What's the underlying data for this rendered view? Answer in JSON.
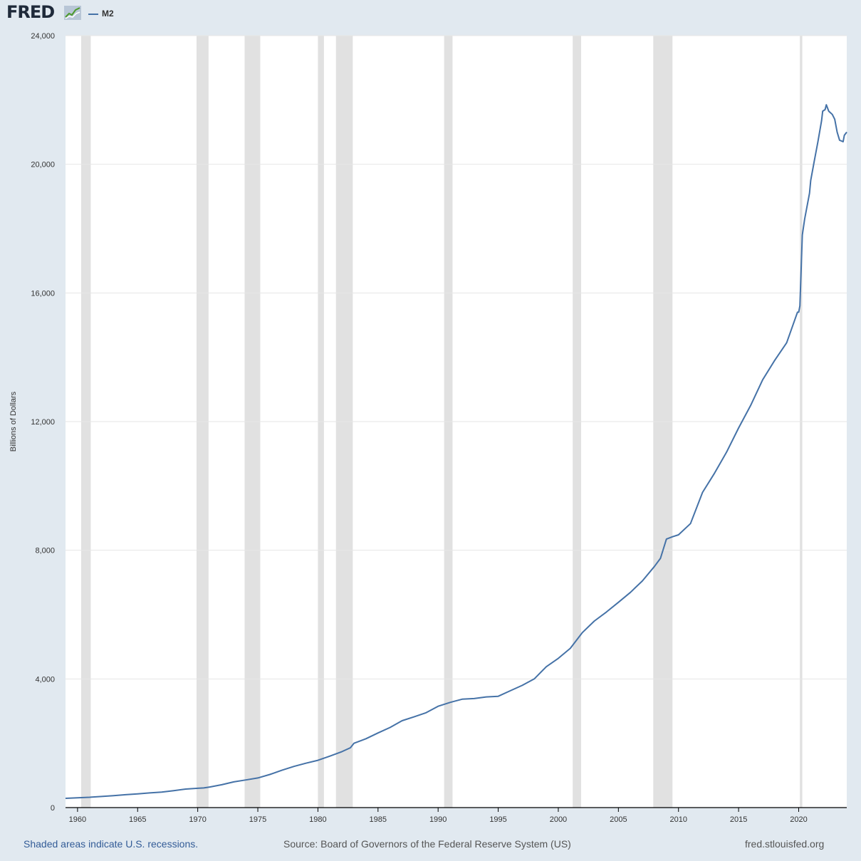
{
  "header": {
    "logo_text": "FRED",
    "logo_mark_icon": "chart-line-icon",
    "legend_label": "M2"
  },
  "footer": {
    "recession_note": "Shaded areas indicate U.S. recessions.",
    "source": "Source: Board of Governors of the Federal Reserve System (US)",
    "site": "fred.stlouisfed.org"
  },
  "colors": {
    "series": "#4572a7",
    "recession": "#e1e1e1",
    "background": "#e1e9f0"
  },
  "chart_data": {
    "type": "line",
    "title": "",
    "xlabel": "",
    "ylabel": "Billions of Dollars",
    "xlim": [
      1959.0,
      2024.0
    ],
    "ylim": [
      0,
      24000
    ],
    "yticks": [
      0,
      4000,
      8000,
      12000,
      16000,
      20000,
      24000
    ],
    "ytick_labels": [
      "0",
      "4,000",
      "8,000",
      "12,000",
      "16,000",
      "20,000",
      "24,000"
    ],
    "xticks": [
      1960,
      1965,
      1970,
      1975,
      1980,
      1985,
      1990,
      1995,
      2000,
      2005,
      2010,
      2015,
      2020
    ],
    "xtick_labels": [
      "1960",
      "1965",
      "1970",
      "1975",
      "1980",
      "1985",
      "1990",
      "1995",
      "2000",
      "2005",
      "2010",
      "2015",
      "2020"
    ],
    "grid": true,
    "legend": "top-left",
    "recessions": [
      [
        1960.3,
        1961.1
      ],
      [
        1969.9,
        1970.9
      ],
      [
        1973.9,
        1975.2
      ],
      [
        1980.0,
        1980.5
      ],
      [
        1981.5,
        1982.9
      ],
      [
        1990.5,
        1991.2
      ],
      [
        2001.2,
        2001.9
      ],
      [
        2007.9,
        2009.5
      ],
      [
        2020.1,
        2020.3
      ]
    ],
    "series": [
      {
        "name": "M2",
        "points": [
          [
            1959.0,
            287
          ],
          [
            1960.0,
            305
          ],
          [
            1961.0,
            320
          ],
          [
            1962.0,
            345
          ],
          [
            1963.0,
            370
          ],
          [
            1964.0,
            400
          ],
          [
            1965.0,
            425
          ],
          [
            1966.0,
            455
          ],
          [
            1967.0,
            480
          ],
          [
            1968.0,
            525
          ],
          [
            1969.0,
            575
          ],
          [
            1970.0,
            600
          ],
          [
            1970.5,
            610
          ],
          [
            1971.0,
            640
          ],
          [
            1972.0,
            710
          ],
          [
            1973.0,
            800
          ],
          [
            1974.0,
            860
          ],
          [
            1975.0,
            920
          ],
          [
            1976.0,
            1030
          ],
          [
            1977.0,
            1160
          ],
          [
            1978.0,
            1280
          ],
          [
            1979.0,
            1380
          ],
          [
            1980.0,
            1470
          ],
          [
            1981.0,
            1600
          ],
          [
            1982.0,
            1740
          ],
          [
            1982.7,
            1860
          ],
          [
            1983.0,
            2000
          ],
          [
            1984.0,
            2140
          ],
          [
            1985.0,
            2320
          ],
          [
            1986.0,
            2490
          ],
          [
            1987.0,
            2700
          ],
          [
            1988.0,
            2820
          ],
          [
            1989.0,
            2950
          ],
          [
            1990.0,
            3150
          ],
          [
            1991.0,
            3270
          ],
          [
            1992.0,
            3370
          ],
          [
            1993.0,
            3390
          ],
          [
            1994.0,
            3440
          ],
          [
            1995.0,
            3460
          ],
          [
            1996.0,
            3630
          ],
          [
            1997.0,
            3800
          ],
          [
            1998.0,
            4000
          ],
          [
            1999.0,
            4380
          ],
          [
            2000.0,
            4640
          ],
          [
            2001.0,
            4950
          ],
          [
            2002.0,
            5440
          ],
          [
            2003.0,
            5800
          ],
          [
            2004.0,
            6080
          ],
          [
            2005.0,
            6380
          ],
          [
            2006.0,
            6690
          ],
          [
            2007.0,
            7050
          ],
          [
            2008.0,
            7500
          ],
          [
            2008.5,
            7750
          ],
          [
            2009.0,
            8350
          ],
          [
            2009.5,
            8420
          ],
          [
            2010.0,
            8480
          ],
          [
            2011.0,
            8830
          ],
          [
            2012.0,
            9800
          ],
          [
            2013.0,
            10400
          ],
          [
            2014.0,
            11050
          ],
          [
            2015.0,
            11800
          ],
          [
            2016.0,
            12500
          ],
          [
            2017.0,
            13300
          ],
          [
            2018.0,
            13900
          ],
          [
            2019.0,
            14450
          ],
          [
            2019.9,
            15400
          ],
          [
            2020.0,
            15400
          ],
          [
            2020.1,
            15600
          ],
          [
            2020.3,
            17800
          ],
          [
            2020.5,
            18300
          ],
          [
            2020.9,
            19100
          ],
          [
            2021.0,
            19500
          ],
          [
            2021.3,
            20100
          ],
          [
            2021.6,
            20700
          ],
          [
            2021.9,
            21350
          ],
          [
            2022.0,
            21650
          ],
          [
            2022.2,
            21700
          ],
          [
            2022.3,
            21850
          ],
          [
            2022.5,
            21650
          ],
          [
            2022.8,
            21550
          ],
          [
            2023.0,
            21400
          ],
          [
            2023.2,
            21000
          ],
          [
            2023.4,
            20750
          ],
          [
            2023.7,
            20700
          ],
          [
            2023.8,
            20900
          ],
          [
            2024.0,
            21000
          ]
        ]
      }
    ]
  }
}
